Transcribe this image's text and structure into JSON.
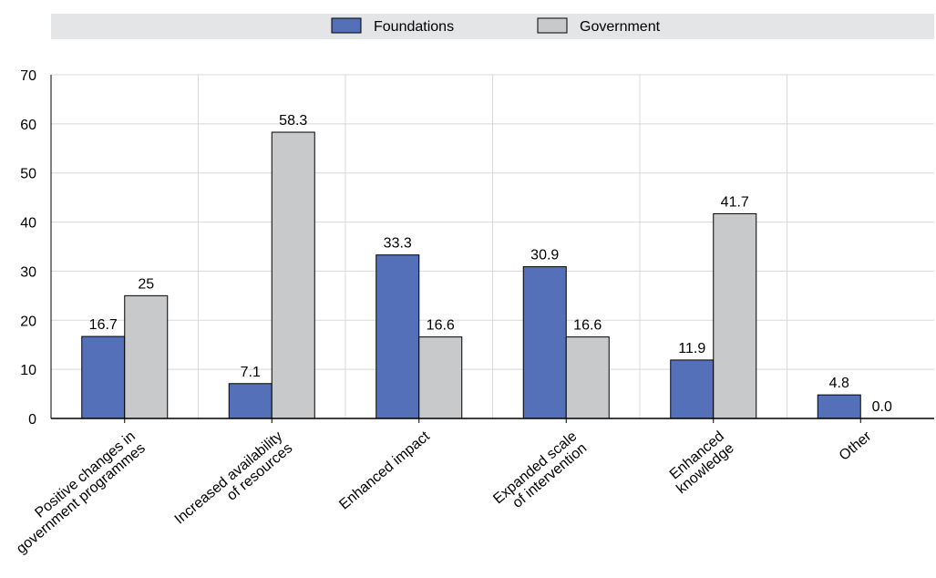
{
  "chart_data": {
    "type": "bar",
    "categories": [
      [
        "Positive changes in",
        "government programmes"
      ],
      [
        "Increased availability",
        "of resources"
      ],
      [
        "Enhanced impact"
      ],
      [
        "Expanded scale",
        "of intervention"
      ],
      [
        "Enhanced",
        "knowledge"
      ],
      [
        "Other"
      ]
    ],
    "series": [
      {
        "name": "Foundations",
        "values": [
          16.7,
          7.1,
          33.3,
          30.9,
          11.9,
          4.8
        ],
        "labels": [
          "16.7",
          "7.1",
          "33.3",
          "30.9",
          "11.9",
          "4.8"
        ],
        "color": "#5470b8"
      },
      {
        "name": "Government",
        "values": [
          25,
          58.3,
          16.6,
          16.6,
          41.7,
          0
        ],
        "labels": [
          "25",
          "58.3",
          "16.6",
          "16.6",
          "41.7",
          "0.0"
        ],
        "color": "#c8c9cb"
      }
    ],
    "ylim": [
      0,
      70
    ],
    "yticks": [
      0,
      10,
      20,
      30,
      40,
      50,
      60,
      70
    ],
    "grid": true,
    "legend": "top",
    "colors": {
      "legend_band": "#e4e5e6",
      "gridline": "#d8d8d8",
      "bar_outline": "#000000"
    }
  }
}
